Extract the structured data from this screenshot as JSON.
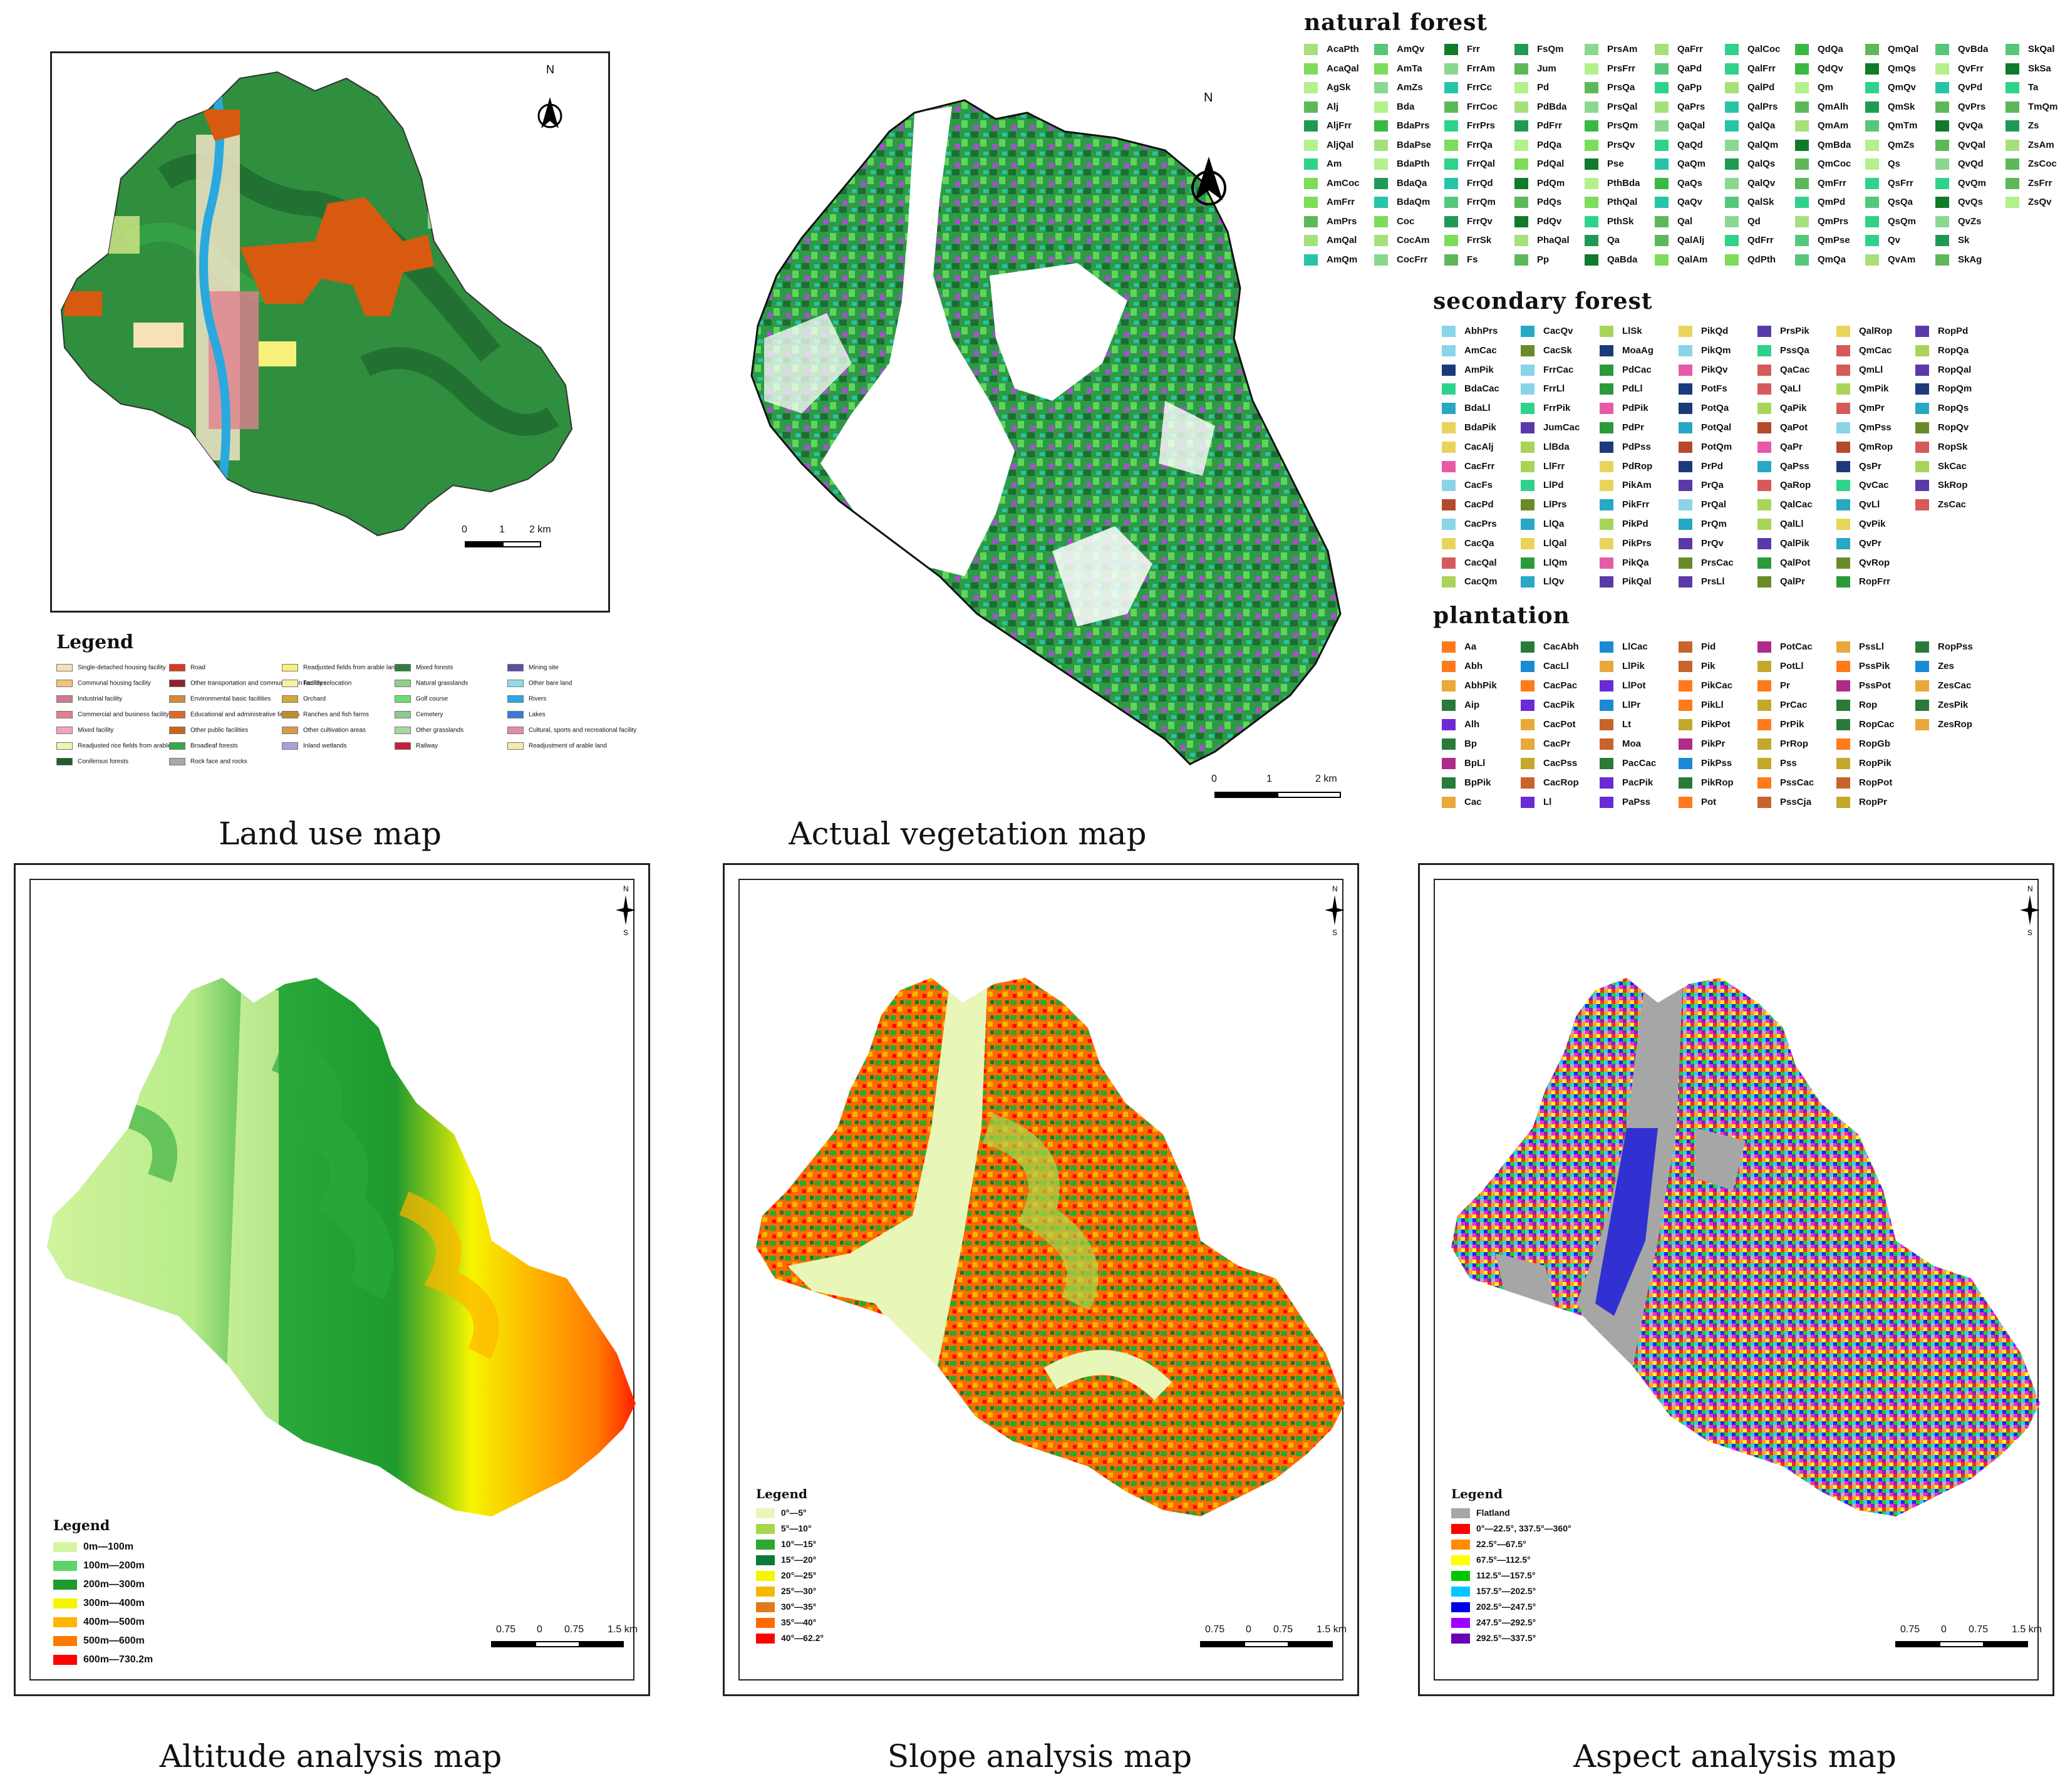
{
  "captions": {
    "land_use": "Land use map",
    "vegetation": "Actual vegetation map",
    "altitude": "Altitude analysis map",
    "slope": "Slope analysis map",
    "aspect": "Aspect analysis map"
  },
  "common": {
    "north": "N",
    "south": "S",
    "legend_title": "Legend"
  },
  "land_use_map": {
    "scale": [
      "0",
      "1",
      "2 km"
    ],
    "legend": [
      {
        "label": "Single-detached housing facility",
        "color": "#f7e2b5"
      },
      {
        "label": "Road",
        "color": "#d93a1e"
      },
      {
        "label": "Readjusted fields from arable land",
        "color": "#f7f07a"
      },
      {
        "label": "Mixed forests",
        "color": "#2e7d3a"
      },
      {
        "label": "Mining site",
        "color": "#5a4fa3"
      },
      {
        "label": "Communal housing facility",
        "color": "#f0c27a"
      },
      {
        "label": "Other transportation and communication facilities",
        "color": "#8b2332"
      },
      {
        "label": "Facility relocation",
        "color": "#f6f0a6"
      },
      {
        "label": "Natural grasslands",
        "color": "#8fcf8a"
      },
      {
        "label": "Other bare land",
        "color": "#8edce8"
      },
      {
        "label": "Industrial facility",
        "color": "#c97c8a"
      },
      {
        "label": "Environmental basic facilities",
        "color": "#d58a3a"
      },
      {
        "label": "Orchard",
        "color": "#d4a93c"
      },
      {
        "label": "Golf course",
        "color": "#6fdc6f"
      },
      {
        "label": "Rivers",
        "color": "#2aa8e0"
      },
      {
        "label": "Commercial and business facility",
        "color": "#e07f8e"
      },
      {
        "label": "Educational and administrative facilities",
        "color": "#d96a2a"
      },
      {
        "label": "Ranches and fish farms",
        "color": "#c08a2e"
      },
      {
        "label": "Cemetery",
        "color": "#8ec98e"
      },
      {
        "label": "Lakes",
        "color": "#3a7bd5"
      },
      {
        "label": "Mixed facility",
        "color": "#f3a6b5"
      },
      {
        "label": "Other public facilities",
        "color": "#c8651e"
      },
      {
        "label": "Other cultivation areas",
        "color": "#d99a4a"
      },
      {
        "label": "Other grasslands",
        "color": "#a6d8a0"
      },
      {
        "label": "Cultural, sports and recreational facility",
        "color": "#e68aa8"
      },
      {
        "label": "Readjusted rice fields from arable land",
        "color": "#f3f3b0"
      },
      {
        "label": "Broadleaf forests",
        "color": "#38a848"
      },
      {
        "label": "Inland wetlands",
        "color": "#a8a0d8"
      },
      {
        "label": "Railway",
        "color": "#c8203a"
      },
      {
        "label": "Readjustment of arable land",
        "color": "#f5e9b0"
      },
      {
        "label": "Coniferous forests",
        "color": "#1d5e2c"
      },
      {
        "label": "Rock face and rocks",
        "color": "#a9a9a9"
      }
    ]
  },
  "vegetation_map": {
    "scale": [
      "0",
      "1",
      "2 km"
    ],
    "natural_forest": {
      "title": "natural forest",
      "columns": [
        [
          "AcaPth",
          "AcaQal",
          "AgSk",
          "Alj",
          "AljFrr",
          "AljQal",
          "Am",
          "AmCoc",
          "AmFrr",
          "AmPrs",
          "AmQal",
          "AmQm"
        ],
        [
          "AmQv",
          "AmTa",
          "AmZs",
          "Bda",
          "BdaPrs",
          "BdaPse",
          "BdaPth",
          "BdaQa",
          "BdaQm",
          "Coc",
          "CocAm",
          "CocFrr"
        ],
        [
          "Frr",
          "FrrAm",
          "FrrCc",
          "FrrCoc",
          "FrrPrs",
          "FrrQa",
          "FrrQal",
          "FrrQd",
          "FrrQm",
          "FrrQv",
          "FrrSk",
          "Fs"
        ],
        [
          "FsQm",
          "Jum",
          "Pd",
          "PdBda",
          "PdFrr",
          "PdQa",
          "PdQal",
          "PdQm",
          "PdQs",
          "PdQv",
          "PhaQal",
          "Pp"
        ],
        [
          "PrsAm",
          "PrsFrr",
          "PrsQa",
          "PrsQal",
          "PrsQm",
          "PrsQv",
          "Pse",
          "PthBda",
          "PthQal",
          "PthSk",
          "Qa",
          "QaBda"
        ],
        [
          "QaFrr",
          "QaPd",
          "QaPp",
          "QaPrs",
          "QaQal",
          "QaQd",
          "QaQm",
          "QaQs",
          "QaQv",
          "Qal",
          "QalAlj",
          "QalAm"
        ],
        [
          "QalCoc",
          "QalFrr",
          "QalPd",
          "QalPrs",
          "QalQa",
          "QalQm",
          "QalQs",
          "QalQv",
          "QalSk",
          "Qd",
          "QdFrr",
          "QdPth"
        ],
        [
          "QdQa",
          "QdQv",
          "Qm",
          "QmAlh",
          "QmAm",
          "QmBda",
          "QmCoc",
          "QmFrr",
          "QmPd",
          "QmPrs",
          "QmPse",
          "QmQa"
        ],
        [
          "QmQal",
          "QmQs",
          "QmQv",
          "QmSk",
          "QmTm",
          "QmZs",
          "Qs",
          "QsFrr",
          "QsQa",
          "QsQm",
          "Qv",
          "QvAm"
        ],
        [
          "QvBda",
          "QvFrr",
          "QvPd",
          "QvPrs",
          "QvQa",
          "QvQal",
          "QvQd",
          "QvQm",
          "QvQs",
          "QvZs",
          "Sk",
          "SkAg"
        ],
        [
          "SkQal",
          "SkSa",
          "Ta",
          "TmQm",
          "Zs",
          "ZsAm",
          "ZsCoc",
          "ZsFrr",
          "ZsQv"
        ]
      ]
    },
    "secondary_forest": {
      "title": "secondary forest",
      "columns": [
        [
          "AbhPrs",
          "AmCac",
          "AmPik",
          "BdaCac",
          "BdaLl",
          "BdaPik",
          "CacAlj",
          "CacFrr",
          "CacFs",
          "CacPd",
          "CacPrs",
          "CacQa",
          "CacQal",
          "CacQm"
        ],
        [
          "CacQv",
          "CacSk",
          "FrrCac",
          "FrrLl",
          "FrrPik",
          "JumCac",
          "LlBda",
          "LlFrr",
          "LlPd",
          "LlPrs",
          "LlQa",
          "LlQal",
          "LlQm",
          "LlQv"
        ],
        [
          "LlSk",
          "MoaAg",
          "PdCac",
          "PdLl",
          "PdPik",
          "PdPr",
          "PdPss",
          "PdRop",
          "PikAm",
          "PikFrr",
          "PikPd",
          "PikPrs",
          "PikQa",
          "PikQal"
        ],
        [
          "PikQd",
          "PikQm",
          "PikQv",
          "PotFs",
          "PotQa",
          "PotQal",
          "PotQm",
          "PrPd",
          "PrQa",
          "PrQal",
          "PrQm",
          "PrQv",
          "PrsCac",
          "PrsLl"
        ],
        [
          "PrsPik",
          "PssQa",
          "QaCac",
          "QaLl",
          "QaPik",
          "QaPot",
          "QaPr",
          "QaPss",
          "QaRop",
          "QalCac",
          "QalLl",
          "QalPik",
          "QalPot",
          "QalPr"
        ],
        [
          "QalRop",
          "QmCac",
          "QmLl",
          "QmPik",
          "QmPr",
          "QmPss",
          "QmRop",
          "QsPr",
          "QvCac",
          "QvLl",
          "QvPik",
          "QvPr",
          "QvRop",
          "RopFrr"
        ],
        [
          "RopPd",
          "RopQa",
          "RopQal",
          "RopQm",
          "RopQs",
          "RopQv",
          "RopSk",
          "SkCac",
          "SkRop",
          "ZsCac"
        ]
      ]
    },
    "plantation": {
      "title": "plantation",
      "columns": [
        [
          "Aa",
          "Abh",
          "AbhPik",
          "Aip",
          "Alh",
          "Bp",
          "BpLl",
          "BpPik",
          "Cac"
        ],
        [
          "CacAbh",
          "CacLl",
          "CacPac",
          "CacPik",
          "CacPot",
          "CacPr",
          "CacPss",
          "CacRop",
          "Ll"
        ],
        [
          "LlCac",
          "LlPik",
          "LlPot",
          "LlPr",
          "Lt",
          "Moa",
          "PacCac",
          "PacPik",
          "PaPss"
        ],
        [
          "Pid",
          "Pik",
          "PikCac",
          "PikLl",
          "PikPot",
          "PikPr",
          "PikPss",
          "PikRop",
          "Pot"
        ],
        [
          "PotCac",
          "PotLl",
          "Pr",
          "PrCac",
          "PrPik",
          "PrRop",
          "Pss",
          "PssCac",
          "PssCja"
        ],
        [
          "PssLl",
          "PssPik",
          "PssPot",
          "Rop",
          "RopCac",
          "RopGb",
          "RopPik",
          "RopPot",
          "RopPr"
        ],
        [
          "RopPss",
          "Zes",
          "ZesCac",
          "ZesPik",
          "ZesRop"
        ]
      ]
    }
  },
  "altitude_map": {
    "scale": [
      "0.75",
      "0",
      "0.75",
      "1.5 km"
    ],
    "legend": [
      {
        "label": "0m—100m",
        "color": "#d6f5a0"
      },
      {
        "label": "100m—200m",
        "color": "#5ed36a"
      },
      {
        "label": "200m—300m",
        "color": "#1e9a2e"
      },
      {
        "label": "300m—400m",
        "color": "#f5f500"
      },
      {
        "label": "400m—500m",
        "color": "#ffb400"
      },
      {
        "label": "500m—600m",
        "color": "#ff7a00"
      },
      {
        "label": "600m—730.2m",
        "color": "#ff0000"
      }
    ]
  },
  "slope_map": {
    "scale": [
      "0.75",
      "0",
      "0.75",
      "1.5 km"
    ],
    "legend": [
      {
        "label": "0°—5°",
        "color": "#e8f7b8"
      },
      {
        "label": "5°—10°",
        "color": "#a8d84a"
      },
      {
        "label": "10°—15°",
        "color": "#2ea82e"
      },
      {
        "label": "15°—20°",
        "color": "#0a7a3a"
      },
      {
        "label": "20°—25°",
        "color": "#f5f500"
      },
      {
        "label": "25°—30°",
        "color": "#f5b800"
      },
      {
        "label": "30°—35°",
        "color": "#e07a1a"
      },
      {
        "label": "35°—40°",
        "color": "#ff6a00"
      },
      {
        "label": "40°—62.2°",
        "color": "#ff0000"
      }
    ]
  },
  "aspect_map": {
    "scale": [
      "0.75",
      "0",
      "0.75",
      "1.5 km"
    ],
    "legend": [
      {
        "label": "Flatland",
        "color": "#a6a6a6"
      },
      {
        "label": "0°—22.5°, 337.5°—360°",
        "color": "#ff0000"
      },
      {
        "label": "22.5°—67.5°",
        "color": "#ff8c00"
      },
      {
        "label": "67.5°—112.5°",
        "color": "#ffff00"
      },
      {
        "label": "112.5°—157.5°",
        "color": "#00c800"
      },
      {
        "label": "157.5°—202.5°",
        "color": "#00c8ff"
      },
      {
        "label": "202.5°—247.5°",
        "color": "#0000e6"
      },
      {
        "label": "247.5°—292.5°",
        "color": "#a000ff"
      },
      {
        "label": "292.5°—337.5°",
        "color": "#6a00b4"
      }
    ]
  }
}
